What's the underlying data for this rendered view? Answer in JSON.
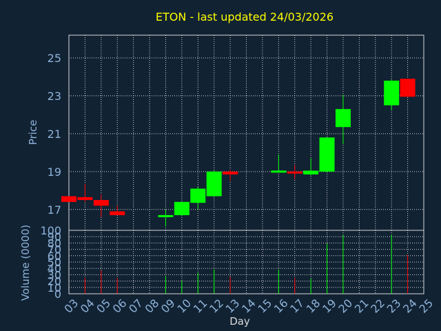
{
  "chart_data": {
    "type": "candlestick",
    "title": "ETON - last updated 24/03/2026",
    "xlabel": "Day",
    "price_panel": {
      "ylabel": "Price",
      "yticks": [
        "17",
        "19",
        "21",
        "23",
        "25"
      ],
      "ylim": [
        15.9,
        26.2
      ],
      "grid": true
    },
    "volume_panel": {
      "ylabel": "Volume (0000)",
      "yticks": [
        "0",
        "10",
        "20",
        "30",
        "40",
        "50",
        "60",
        "70",
        "80",
        "90",
        "100"
      ],
      "ylim": [
        0,
        100
      ],
      "grid": true
    },
    "x_ticks": [
      "03",
      "04",
      "05",
      "06",
      "07",
      "08",
      "09",
      "10",
      "11",
      "12",
      "13",
      "14",
      "15",
      "16",
      "17",
      "18",
      "19",
      "20",
      "21",
      "22",
      "23",
      "24",
      "25"
    ],
    "xlim": [
      3,
      25
    ],
    "candles": [
      {
        "day": 3,
        "open": 17.7,
        "high": 17.7,
        "low": 17.4,
        "close": 17.4,
        "volume": 0
      },
      {
        "day": 4,
        "open": 17.65,
        "high": 18.35,
        "low": 17.4,
        "close": 17.5,
        "volume": 25
      },
      {
        "day": 5,
        "open": 17.5,
        "high": 17.8,
        "low": 16.6,
        "close": 17.2,
        "volume": 37
      },
      {
        "day": 6,
        "open": 16.9,
        "high": 17.2,
        "low": 16.7,
        "close": 16.7,
        "volume": 25
      },
      {
        "day": 9,
        "open": 16.6,
        "high": 17.0,
        "low": 16.1,
        "close": 16.7,
        "volume": 28
      },
      {
        "day": 10,
        "open": 16.7,
        "high": 17.4,
        "low": 16.65,
        "close": 17.4,
        "volume": 20
      },
      {
        "day": 11,
        "open": 17.35,
        "high": 18.2,
        "low": 17.0,
        "close": 18.1,
        "volume": 33
      },
      {
        "day": 12,
        "open": 17.7,
        "high": 19.05,
        "low": 17.7,
        "close": 19.0,
        "volume": 38
      },
      {
        "day": 13,
        "open": 19.0,
        "high": 19.1,
        "low": 18.5,
        "close": 18.85,
        "volume": 27
      },
      {
        "day": 16,
        "open": 18.95,
        "high": 19.9,
        "low": 18.95,
        "close": 19.05,
        "volume": 38
      },
      {
        "day": 17,
        "open": 19.0,
        "high": 19.35,
        "low": 18.6,
        "close": 18.9,
        "volume": 25
      },
      {
        "day": 18,
        "open": 18.85,
        "high": 19.7,
        "low": 18.8,
        "close": 19.05,
        "volume": 24
      },
      {
        "day": 19,
        "open": 19.0,
        "high": 20.8,
        "low": 18.95,
        "close": 20.8,
        "volume": 79
      },
      {
        "day": 20,
        "open": 21.35,
        "high": 23.05,
        "low": 20.45,
        "close": 22.3,
        "volume": 93
      },
      {
        "day": 23,
        "open": 22.5,
        "high": 23.85,
        "low": 22.25,
        "close": 23.8,
        "volume": 93
      },
      {
        "day": 24,
        "open": 23.9,
        "high": 23.9,
        "low": 22.95,
        "close": 22.95,
        "volume": 61
      }
    ],
    "colors": {
      "background": "#112233",
      "grid": "#d9d9d9",
      "axis_text": "#8fb3d9",
      "title": "#ffff00",
      "up": "#00ff00",
      "down": "#ff0000"
    }
  }
}
